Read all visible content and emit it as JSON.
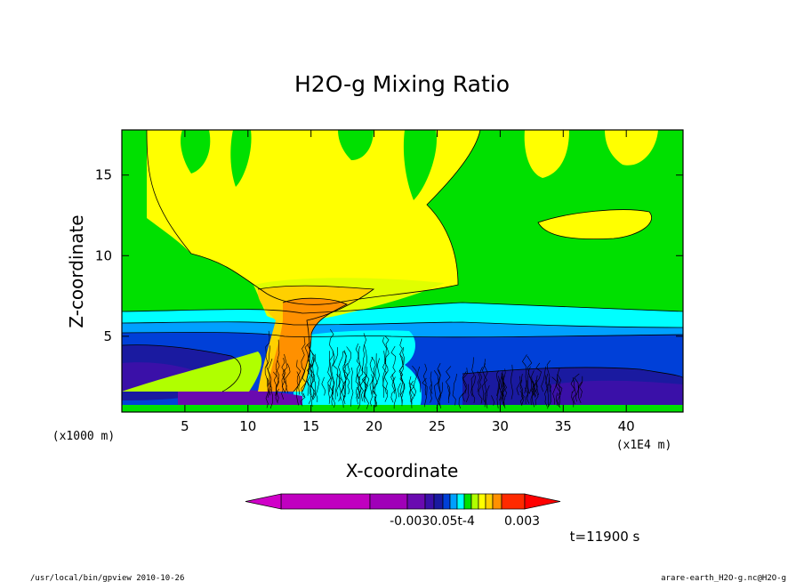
{
  "chart_data": {
    "type": "heatmap",
    "title": "H2O-g Mixing Ratio",
    "xlabel": "X-coordinate",
    "ylabel": "Z-coordinate",
    "x_unit_left": "(x1000 m)",
    "x_unit_right": "(x1E4 m)",
    "xlim": [
      0,
      44.5
    ],
    "ylim": [
      0.3,
      17.8
    ],
    "x_ticks": [
      "5",
      "10",
      "15",
      "20",
      "25",
      "30",
      "35",
      "40"
    ],
    "y_ticks": [
      "5",
      "10",
      "15"
    ],
    "colorbar": {
      "labels": [
        "-0.0030.05t-4",
        "0.003"
      ],
      "colors": [
        "#c000c0",
        "#a000b8",
        "#6a0ab0",
        "#3a10a8",
        "#1a1aa0",
        "#0040d8",
        "#00a0ff",
        "#00ffff",
        "#00e000",
        "#b0ff00",
        "#ffff00",
        "#ffd000",
        "#ff9000",
        "#ff2a00"
      ]
    },
    "regions": [
      {
        "level": "green",
        "description": "background above 6.5 km"
      },
      {
        "level": "yellow",
        "description": "anvil plume 8-18 km centred x=15-27"
      },
      {
        "level": "orange",
        "description": "convective core x=12-16, z=1-7"
      },
      {
        "level": "cyan",
        "description": "layer z=5.2-6.5"
      },
      {
        "level": "blue",
        "description": "lower troposphere z=0.3-5.2"
      }
    ],
    "time_label": "t=11900 s"
  },
  "footer": {
    "left": "/usr/local/bin/gpview  2010-10-26",
    "right": "arare-earth_H2O-g.nc@H2O-g"
  },
  "colors": {
    "green": "#00e000",
    "yellow": "#ffff00",
    "lightyellow": "#e0ff00",
    "orange": "#ff9000",
    "lightorange": "#ffd000",
    "cyan": "#00ffff",
    "skyblue": "#00a0ff",
    "blue": "#0040d8",
    "navy": "#1a1aa0",
    "indigo": "#3a10a8",
    "purple": "#6a0ab0"
  }
}
